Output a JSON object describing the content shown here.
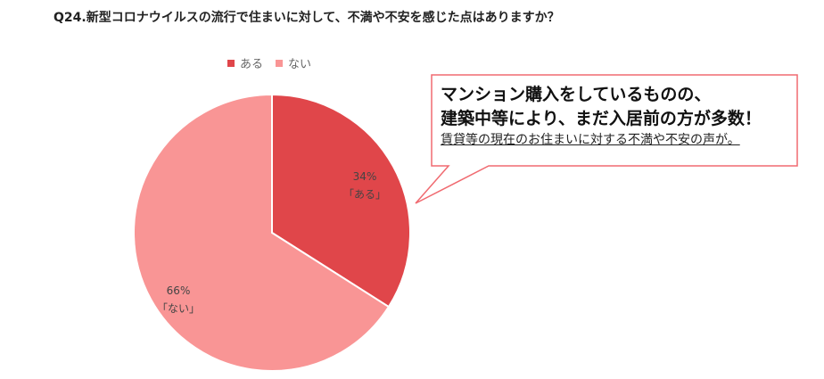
{
  "question": "Q24.新型コロナウイルスの流行で住まいに対して、不満や不安を感じた点はありますか？",
  "callout": {
    "line1": "マンション購入をしているものの、",
    "line2": "建築中等により、まだ入居前の方が多数！",
    "sub": "賃貸等の現在のお住まいに対する不満や不安の声が。"
  },
  "colors": {
    "aru": "#e0464a",
    "nai": "#f99595",
    "callout_border": "#f06a70"
  },
  "chart_data": {
    "type": "pie",
    "categories": [
      "ある",
      "ない"
    ],
    "values": [
      34,
      66
    ],
    "legend_position": "top",
    "labels": [
      {
        "percent": "34%",
        "name": "「ある」"
      },
      {
        "percent": "66%",
        "name": "「ない」"
      }
    ]
  }
}
